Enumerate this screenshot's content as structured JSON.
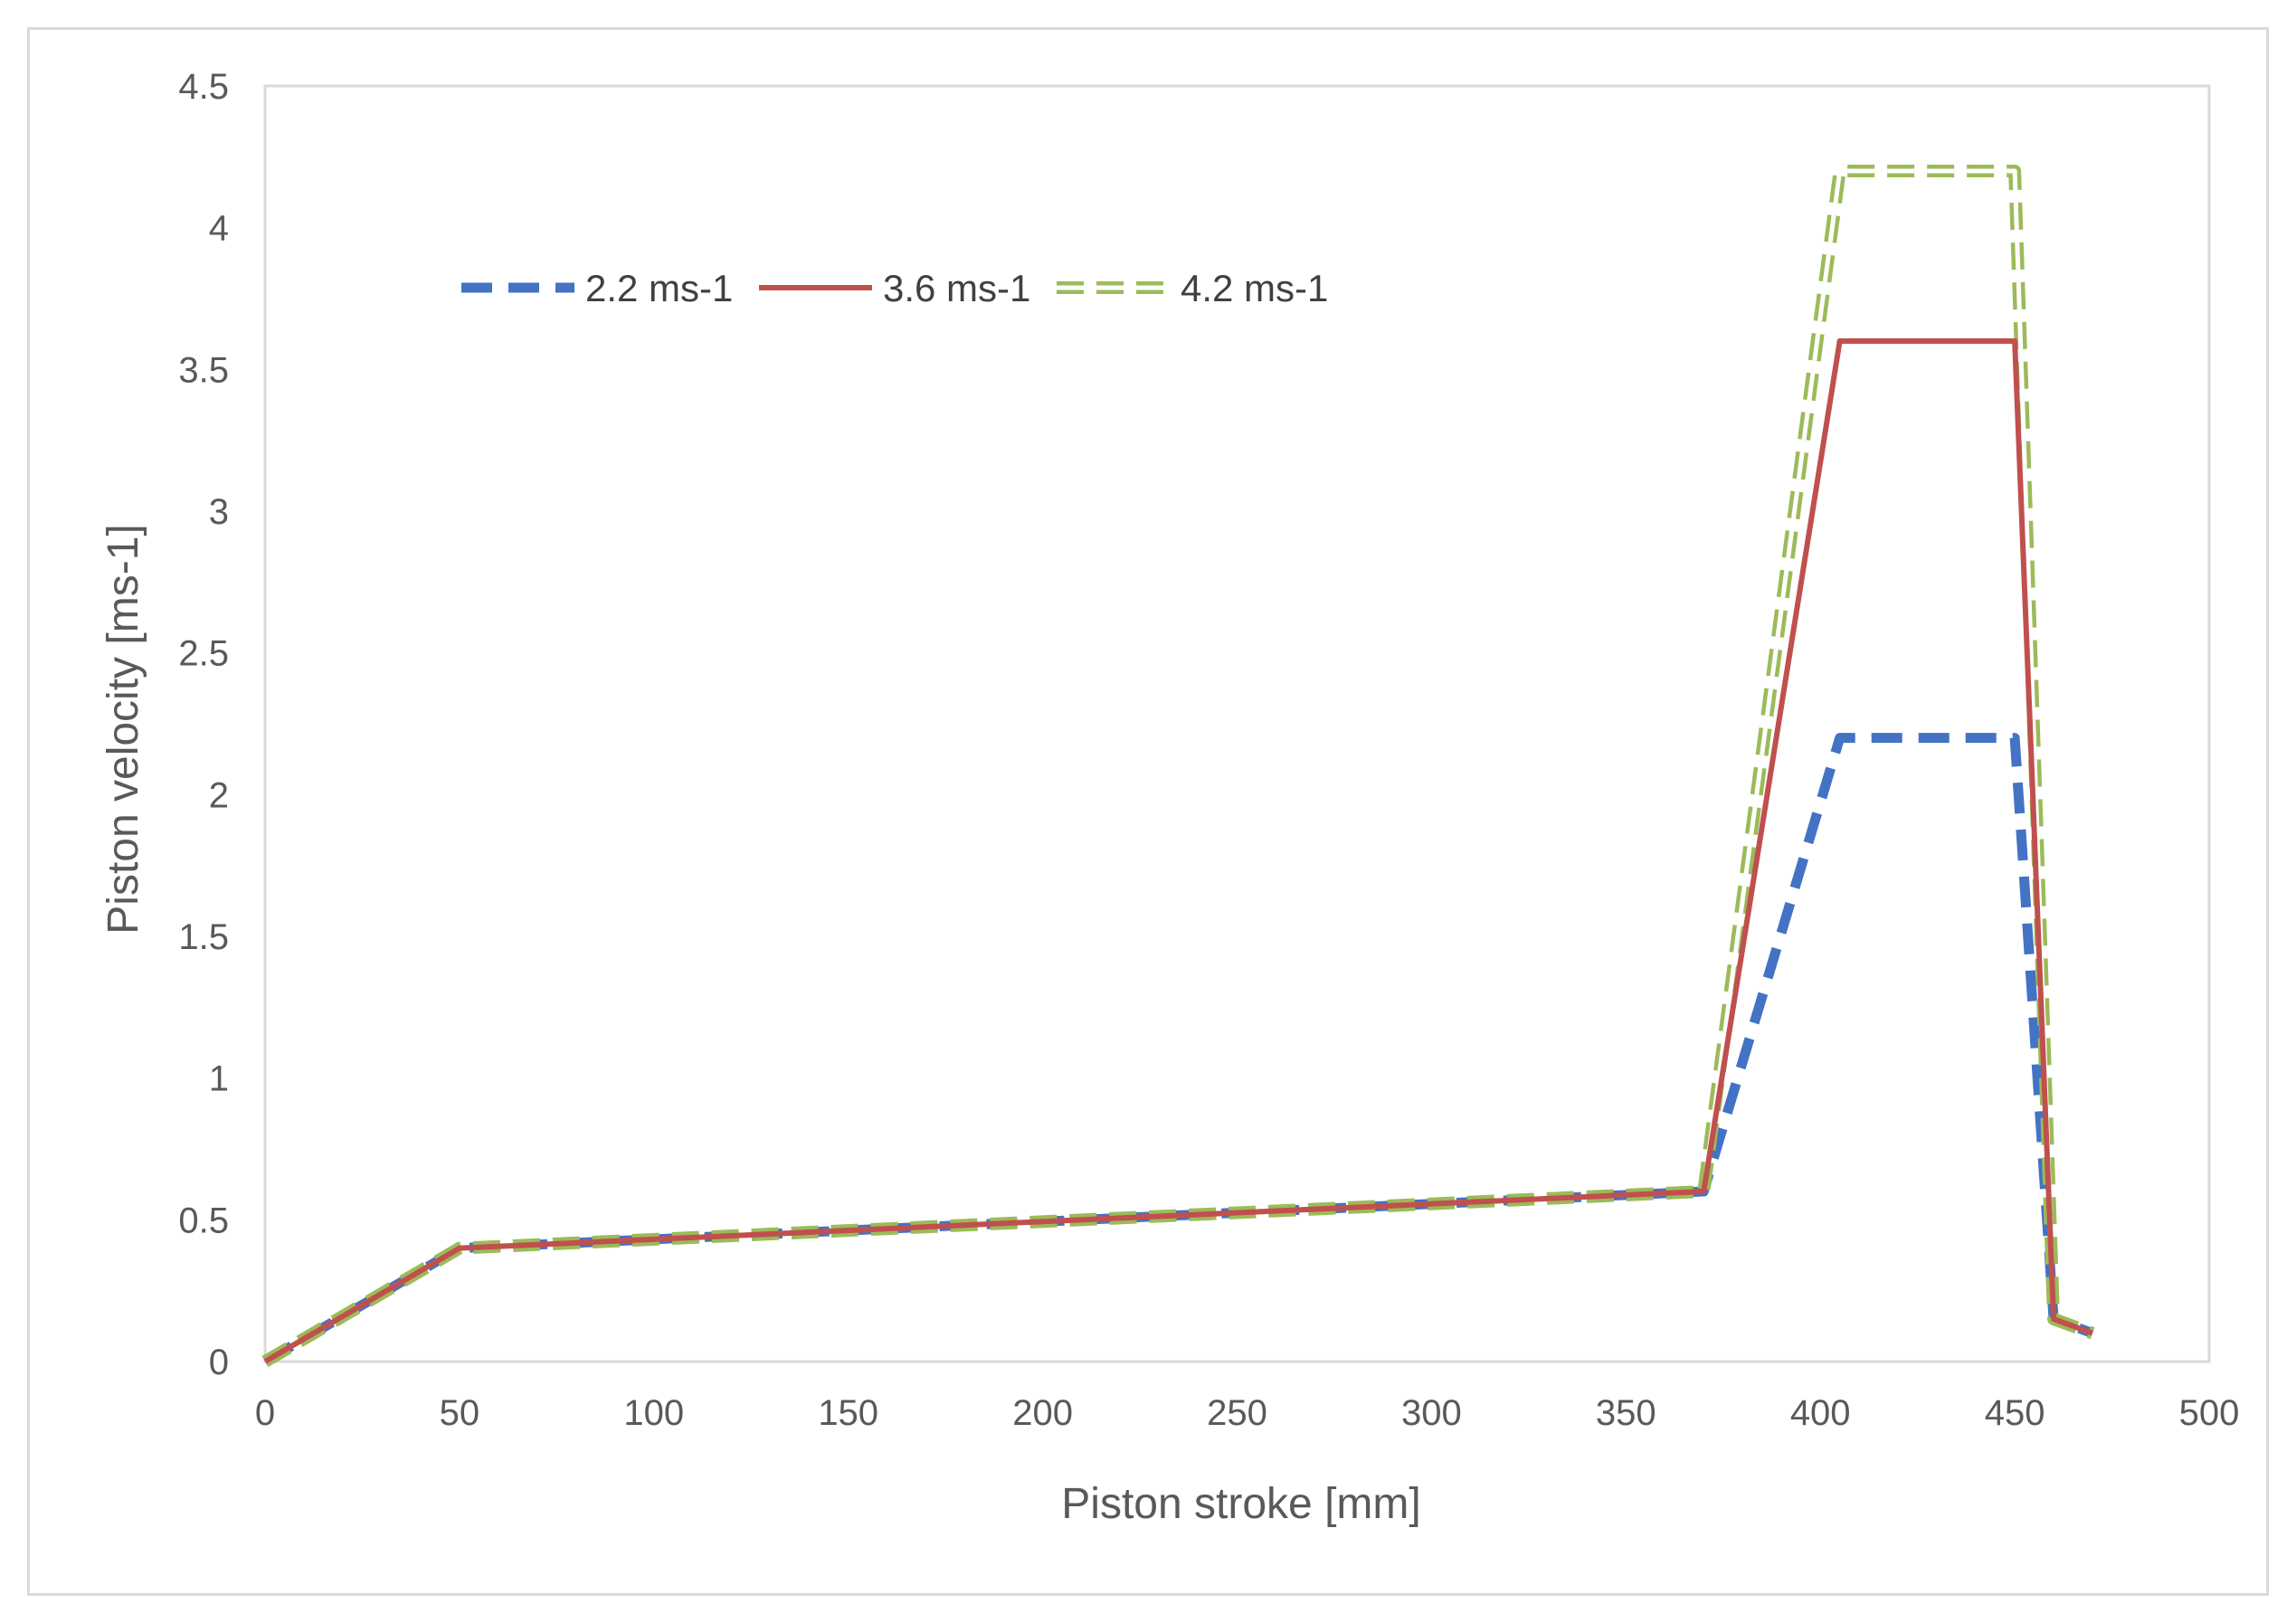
{
  "chart_data": {
    "type": "line",
    "title": "",
    "xlabel": "Piston stroke [mm]",
    "ylabel": "Piston velocity [ms-1]",
    "xlim": [
      0,
      500
    ],
    "ylim": [
      0,
      4.5
    ],
    "xticks": [
      0,
      50,
      100,
      150,
      200,
      250,
      300,
      350,
      400,
      450,
      500
    ],
    "yticks": [
      0,
      0.5,
      1,
      1.5,
      2,
      2.5,
      3,
      3.5,
      4,
      4.5
    ],
    "xtick_labels": [
      "0",
      "50",
      "100",
      "150",
      "200",
      "250",
      "300",
      "350",
      "400",
      "450",
      "500"
    ],
    "ytick_labels": [
      "0",
      "0.5",
      "1",
      "1.5",
      "2",
      "2.5",
      "3",
      "3.5",
      "4",
      "4.5"
    ],
    "grid": false,
    "legend_position": "top-left",
    "series": [
      {
        "name": "2.2 ms-1",
        "color": "#4472c4",
        "style": "dashed",
        "points": [
          [
            0,
            0
          ],
          [
            50,
            0.4
          ],
          [
            370,
            0.6
          ],
          [
            405,
            2.2
          ],
          [
            450,
            2.2
          ],
          [
            460,
            0.15
          ],
          [
            470,
            0.1
          ]
        ]
      },
      {
        "name": "3.6 ms-1",
        "color": "#c0504d",
        "style": "solid",
        "points": [
          [
            0,
            0
          ],
          [
            50,
            0.4
          ],
          [
            370,
            0.6
          ],
          [
            405,
            3.6
          ],
          [
            450,
            3.6
          ],
          [
            460,
            0.15
          ],
          [
            470,
            0.1
          ]
        ]
      },
      {
        "name": "4.2 ms-1",
        "color": "#9bbb59",
        "style": "double-dashed",
        "points": [
          [
            0,
            0
          ],
          [
            50,
            0.4
          ],
          [
            370,
            0.6
          ],
          [
            405,
            4.2
          ],
          [
            450,
            4.2
          ],
          [
            460,
            0.15
          ],
          [
            470,
            0.1
          ]
        ]
      }
    ]
  }
}
